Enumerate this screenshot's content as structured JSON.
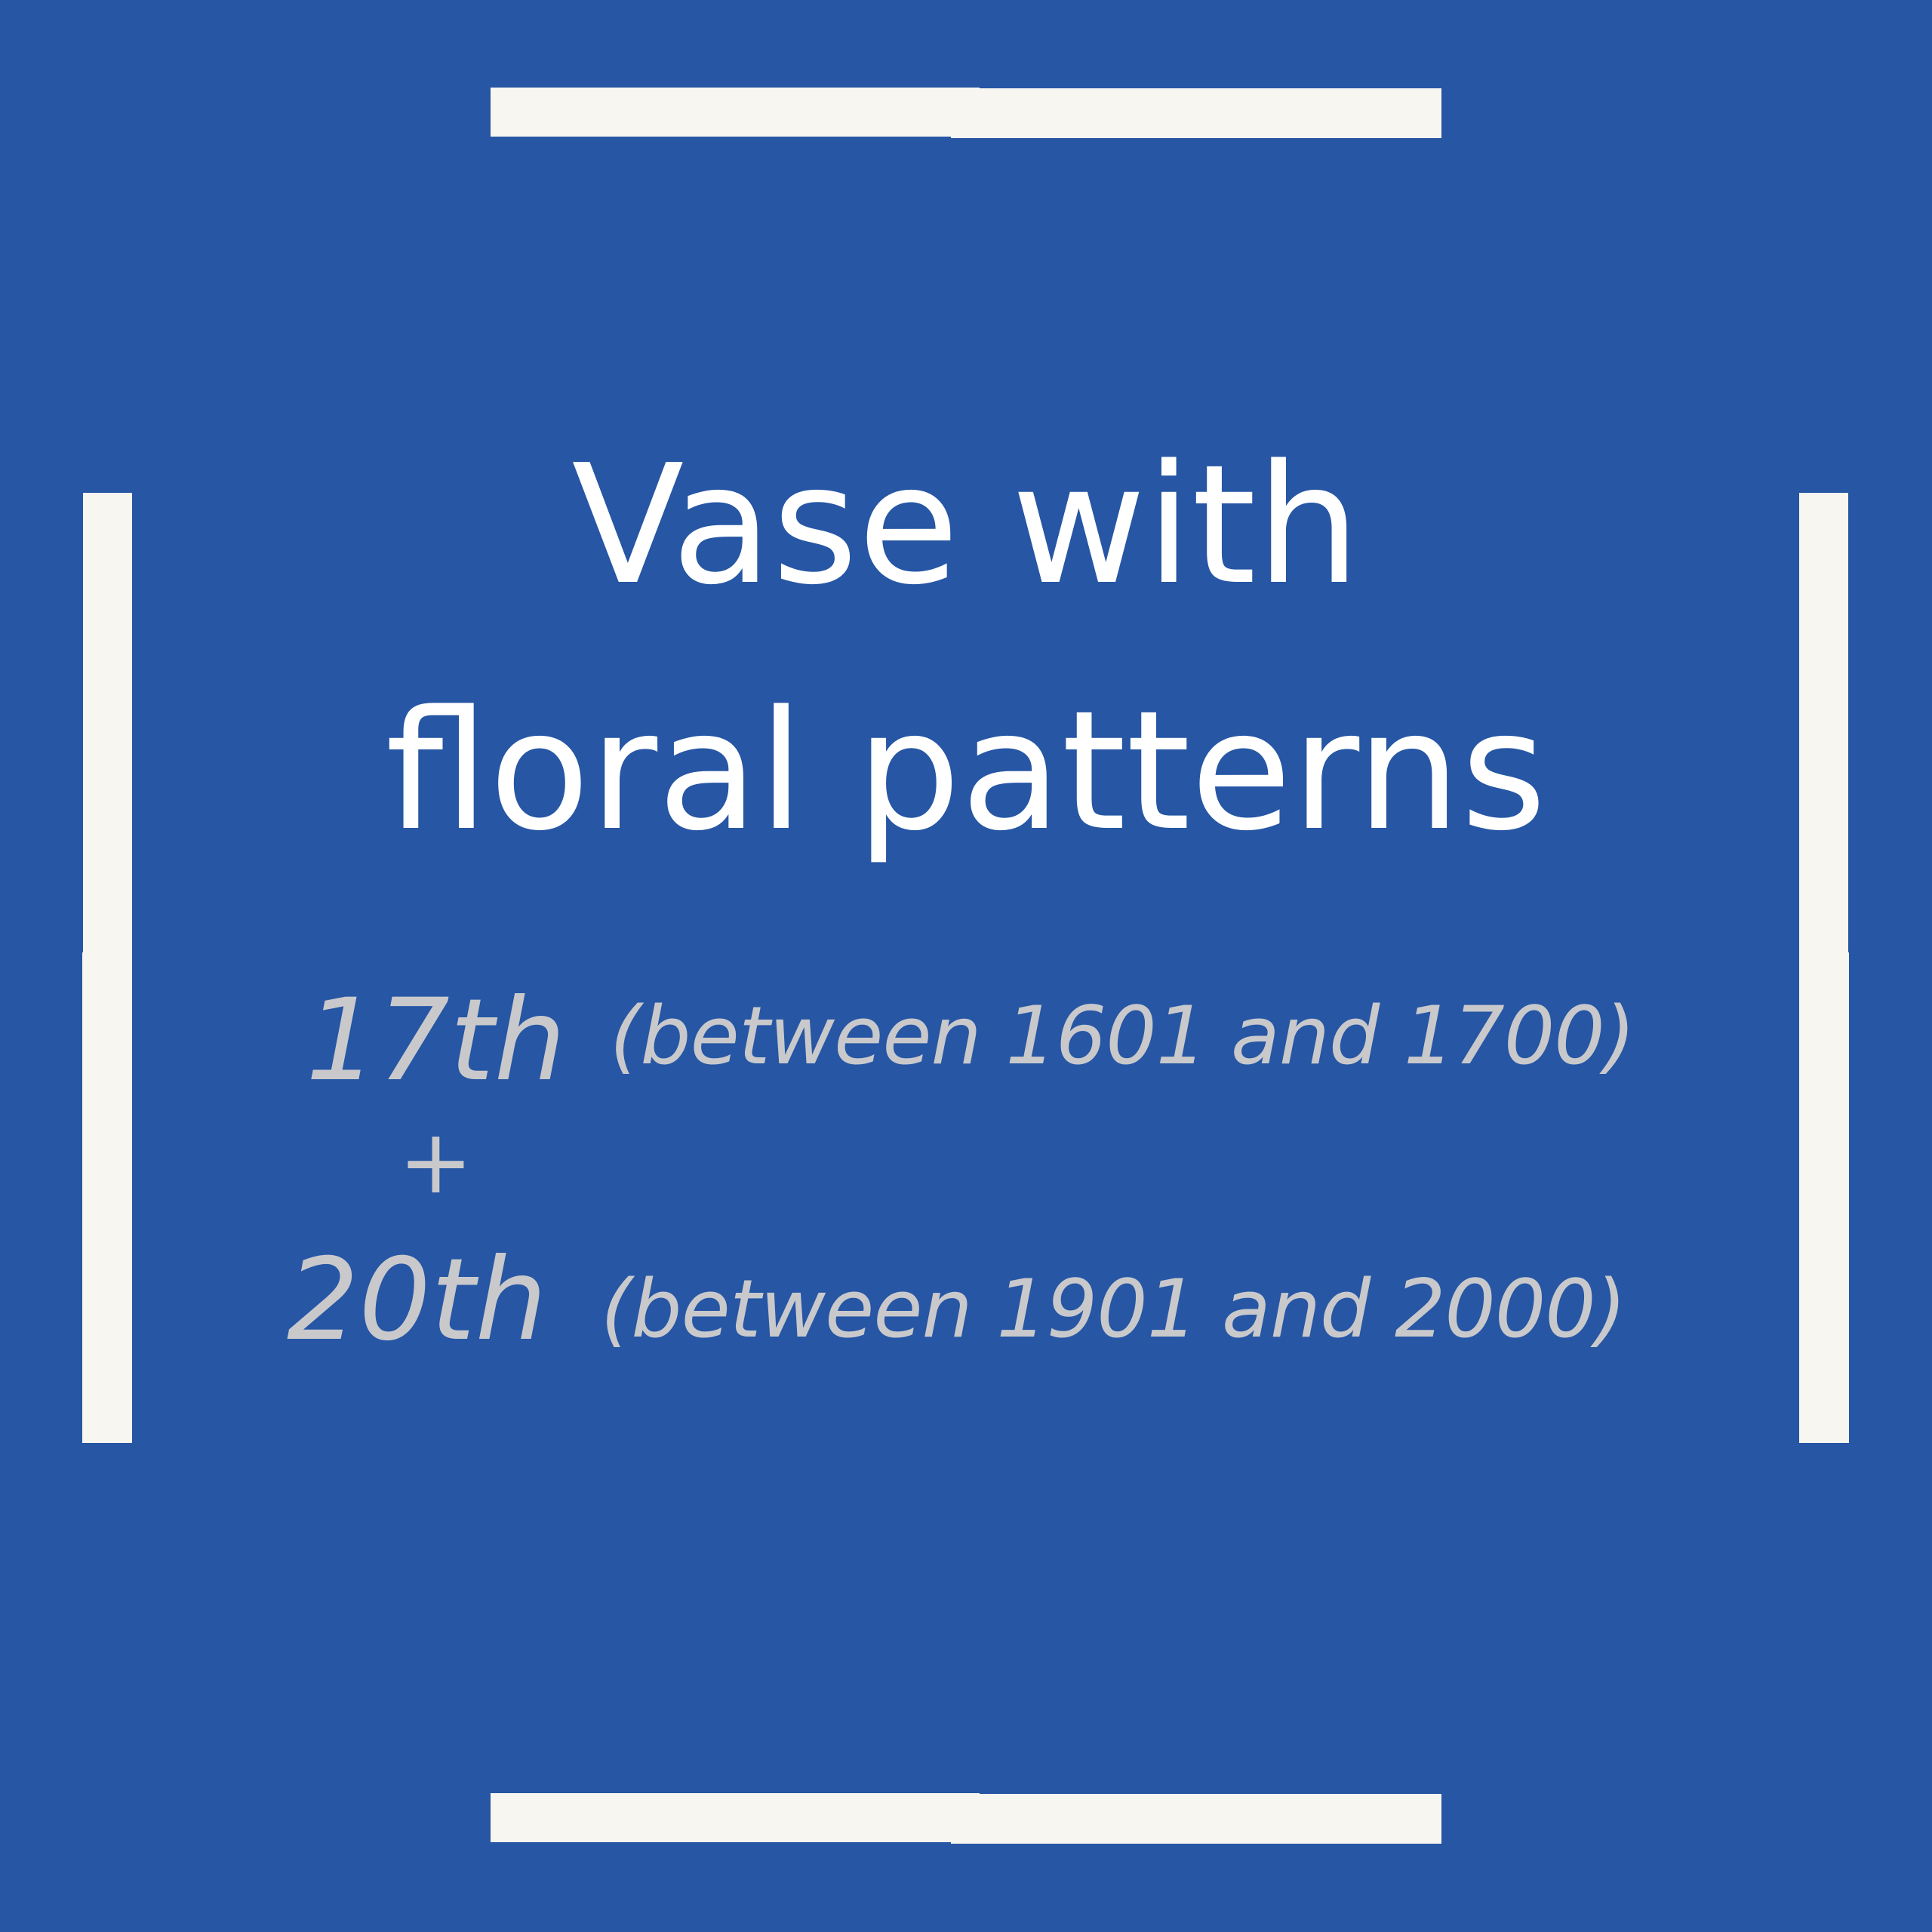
{
  "title": {
    "line1": "Vase with",
    "line2": "floral patterns"
  },
  "periods": [
    {
      "century": "17th",
      "range": "(between 1601 and 1700)"
    },
    {
      "century": "20th",
      "range": "(between 1901 and 2000)"
    }
  ],
  "joiner": "+",
  "colors": {
    "background": "#2656a4",
    "frame": "#f7f6f0",
    "title": "#ffffff",
    "subtitle": "#c9c9cc"
  }
}
